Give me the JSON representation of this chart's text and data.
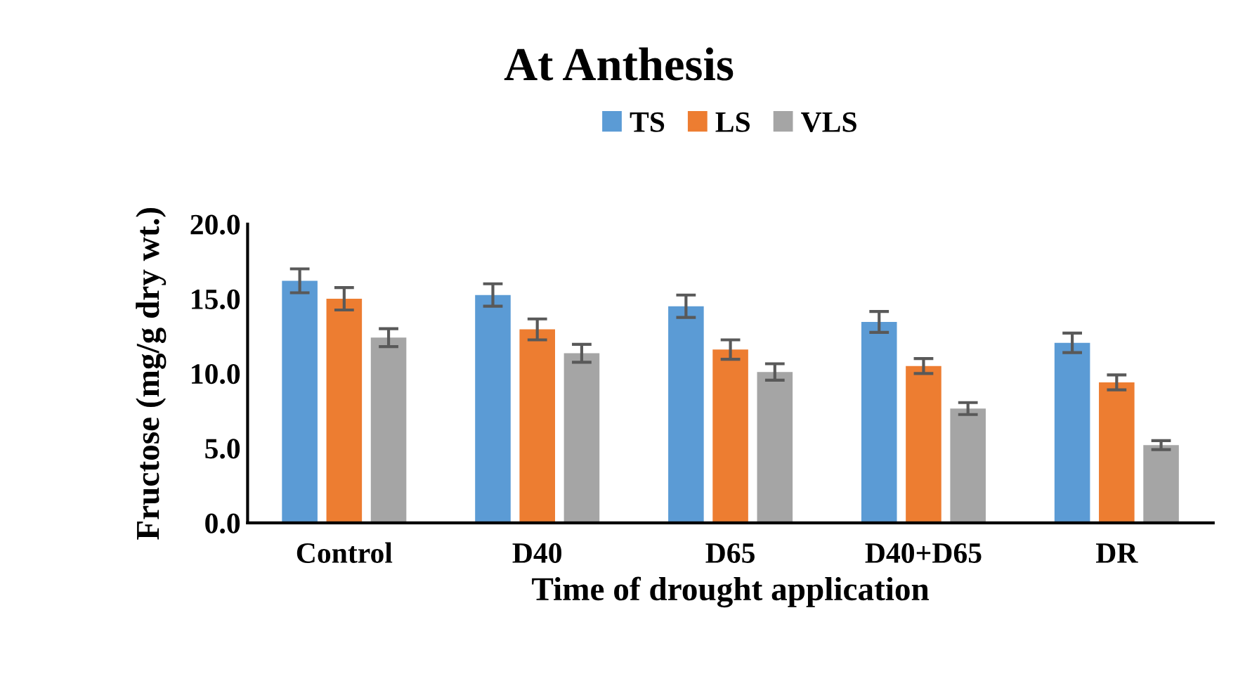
{
  "chart_data": {
    "type": "bar",
    "title": "At Anthesis",
    "xlabel": "Time of drought application",
    "ylabel": "Fructose (mg/g dry wt.)",
    "categories": [
      "Control",
      "D40",
      "D65",
      "D40+D65",
      "DR"
    ],
    "series": [
      {
        "name": "TS",
        "color": "#5b9bd5",
        "values": [
          16.2,
          15.25,
          14.5,
          13.45,
          12.05
        ],
        "errors": [
          0.8,
          0.75,
          0.75,
          0.7,
          0.65
        ]
      },
      {
        "name": "LS",
        "color": "#ed7d31",
        "values": [
          15.0,
          12.95,
          11.6,
          10.5,
          9.4
        ],
        "errors": [
          0.75,
          0.7,
          0.65,
          0.5,
          0.5
        ]
      },
      {
        "name": "VLS",
        "color": "#a5a5a5",
        "values": [
          12.4,
          11.35,
          10.1,
          7.65,
          5.2
        ],
        "errors": [
          0.6,
          0.6,
          0.55,
          0.4,
          0.3
        ]
      }
    ],
    "ylim": [
      0,
      20
    ],
    "yticks": [
      {
        "value": 0,
        "label": "0.0"
      },
      {
        "value": 5,
        "label": "5.0"
      },
      {
        "value": 10,
        "label": "10.0"
      },
      {
        "value": 15,
        "label": "15.0"
      },
      {
        "value": 20,
        "label": "20.0"
      }
    ],
    "grid": false,
    "legend": "top"
  }
}
